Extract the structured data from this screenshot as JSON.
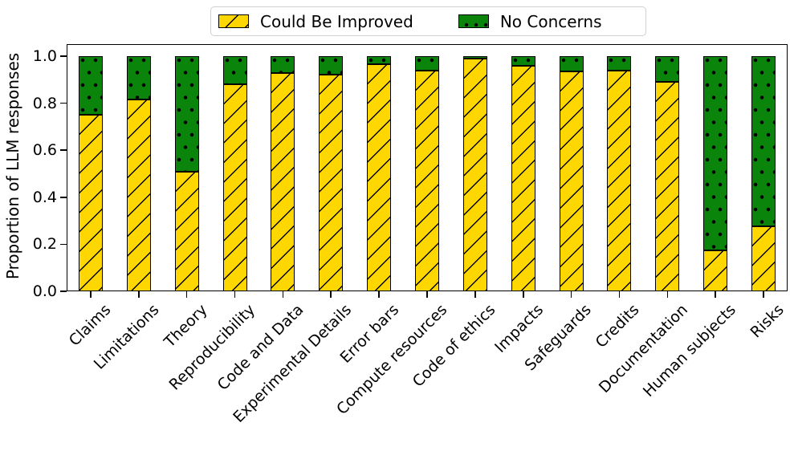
{
  "figure": {
    "background": "#ffffff"
  },
  "chart_data": {
    "type": "bar",
    "stacked": true,
    "title": "",
    "xlabel": "",
    "ylabel": "Proportion of LLM responses",
    "ylim": [
      0,
      1.0
    ],
    "yticks": [
      0.0,
      0.2,
      0.4,
      0.6,
      0.8,
      1.0
    ],
    "grid": false,
    "legend_position": "top-center",
    "categories": [
      "Claims",
      "Limitations",
      "Theory",
      "Reproducibility",
      "Code and Data",
      "Experimental Details",
      "Error bars",
      "Compute resources",
      "Code of ethics",
      "Impacts",
      "Safeguards",
      "Credits",
      "Documentation",
      "Human subjects",
      "Risks"
    ],
    "series": [
      {
        "name": "Could Be Improved",
        "color": "#FFD700",
        "hatch": "/",
        "values": [
          0.75,
          0.815,
          0.51,
          0.88,
          0.93,
          0.92,
          0.965,
          0.94,
          0.99,
          0.96,
          0.935,
          0.94,
          0.89,
          0.175,
          0.275
        ]
      },
      {
        "name": "No Concerns",
        "color": "#0a840a",
        "hatch": ".",
        "values": [
          0.25,
          0.185,
          0.49,
          0.12,
          0.07,
          0.08,
          0.035,
          0.06,
          0.01,
          0.04,
          0.065,
          0.06,
          0.11,
          0.825,
          0.725
        ]
      }
    ]
  }
}
